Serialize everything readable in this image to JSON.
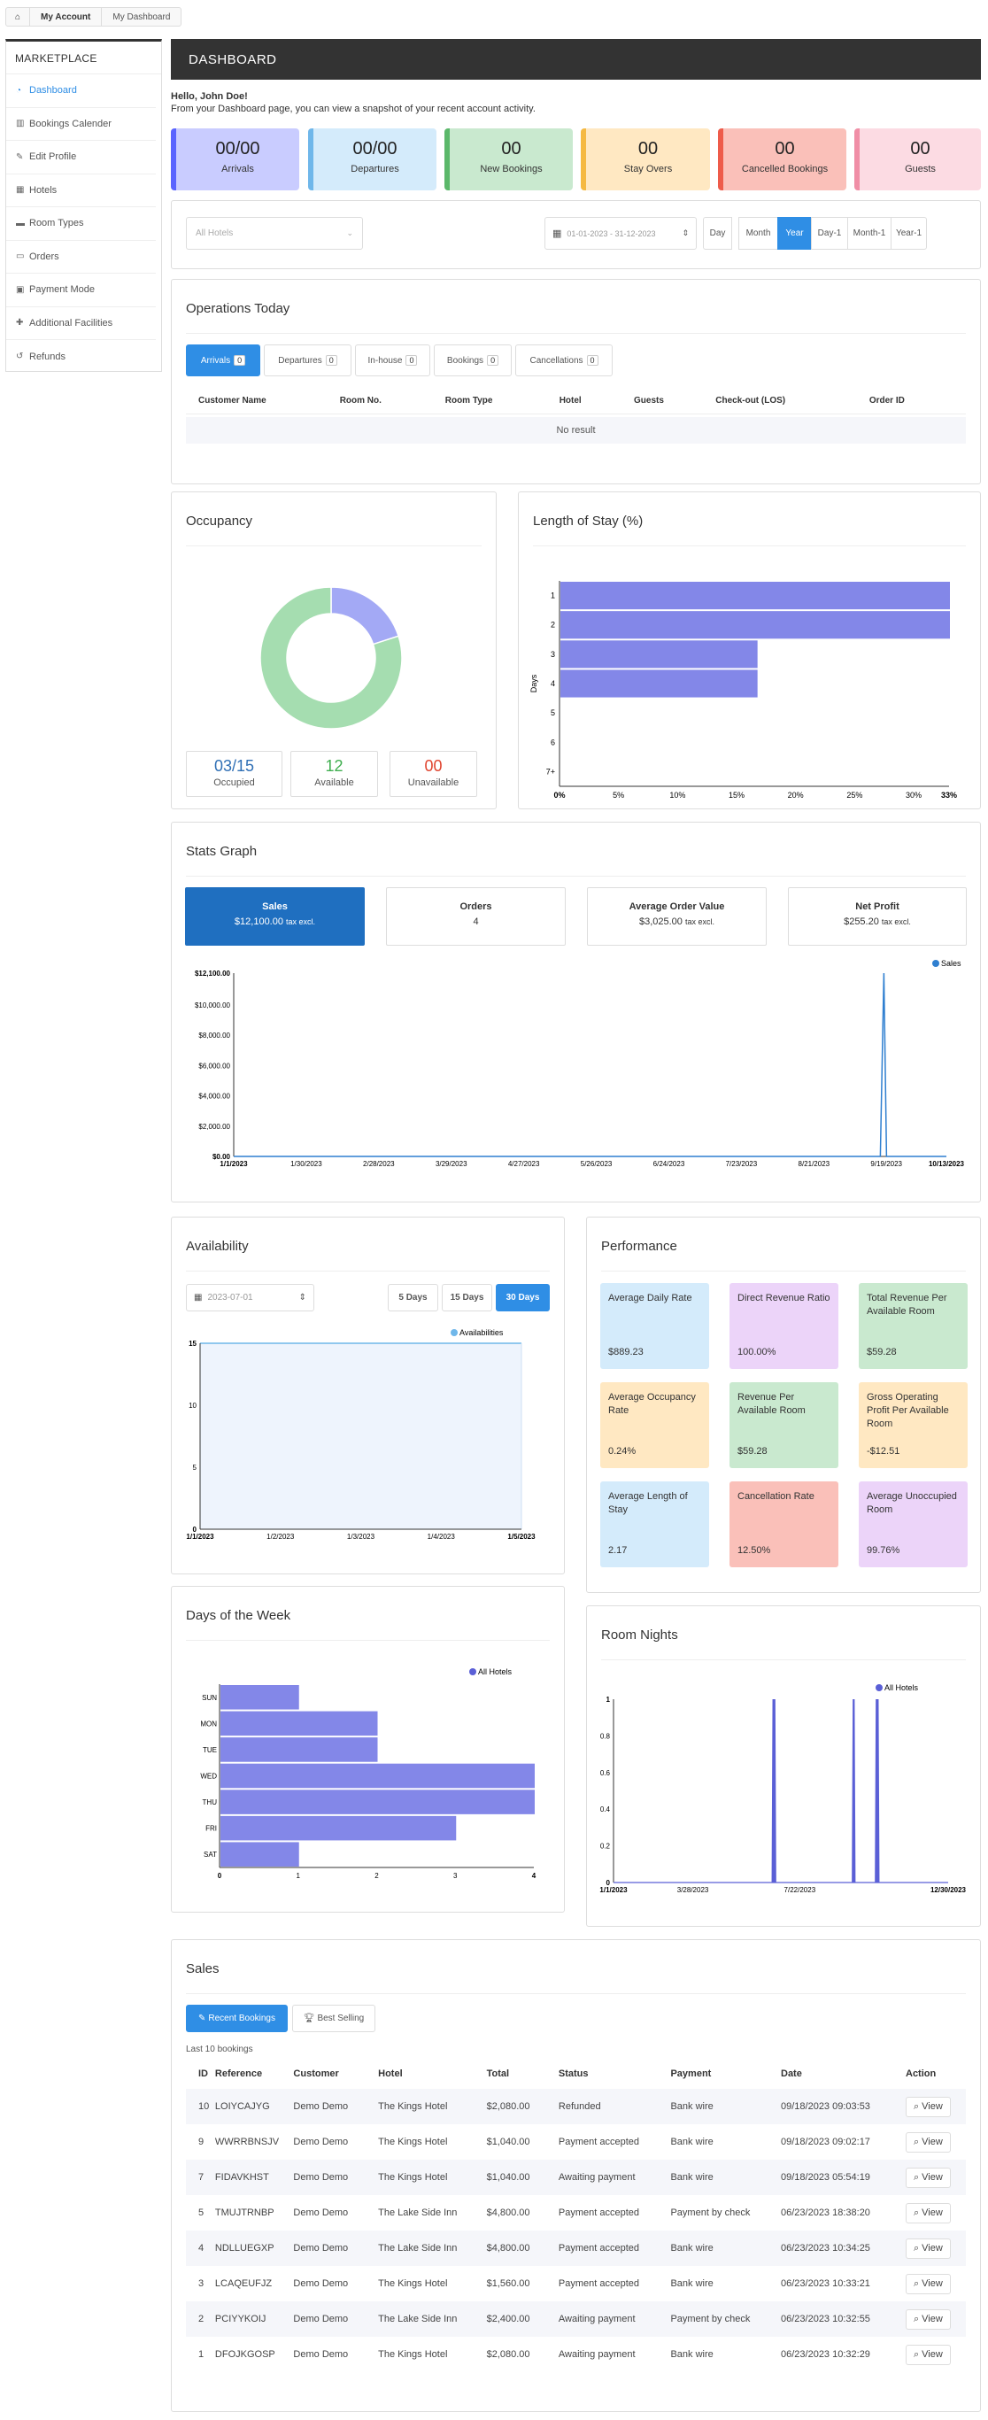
{
  "breadcrumb": {
    "home": "⌂",
    "items": [
      "My Account",
      "My Dashboard"
    ]
  },
  "sidebar": {
    "title": "MARKETPLACE",
    "items": [
      {
        "icon": "◔",
        "label": "Dashboard"
      },
      {
        "icon": "▥",
        "label": "Bookings Calender"
      },
      {
        "icon": "✎",
        "label": "Edit Profile"
      },
      {
        "icon": "▦",
        "label": "Hotels"
      },
      {
        "icon": "▬",
        "label": "Room Types"
      },
      {
        "icon": "▭",
        "label": "Orders"
      },
      {
        "icon": "▣",
        "label": "Payment Mode"
      },
      {
        "icon": "✚",
        "label": "Additional Facilities"
      },
      {
        "icon": "↺",
        "label": "Refunds"
      }
    ]
  },
  "header": {
    "title": "DASHBOARD"
  },
  "greeting": {
    "hello": "Hello, John Doe!",
    "text": "From your Dashboard page, you can view a snapshot of your recent account activity."
  },
  "stats": [
    {
      "value": "00/00",
      "label": "Arrivals",
      "bg": "#c9ccff",
      "bar": "#5a64ff"
    },
    {
      "value": "00/00",
      "label": "Departures",
      "bg": "#d4ebfb",
      "bar": "#6fb7ea"
    },
    {
      "value": "00",
      "label": "New Bookings",
      "bg": "#c9e9cf",
      "bar": "#5bb86a"
    },
    {
      "value": "00",
      "label": "Stay Overs",
      "bg": "#ffe8c2",
      "bar": "#f5b942"
    },
    {
      "value": "00",
      "label": "Cancelled Bookings",
      "bg": "#fac0b9",
      "bar": "#ee5b4a"
    },
    {
      "value": "00",
      "label": "Guests",
      "bg": "#fcdbe3",
      "bar": "#f08ea6"
    }
  ],
  "filters": {
    "hotel_placeholder": "All Hotels",
    "date_range": "01-01-2023 - 31-12-2023",
    "periods": [
      "Day",
      "Month",
      "Year",
      "Day-1",
      "Month-1",
      "Year-1"
    ],
    "active": "Year"
  },
  "operations": {
    "title": "Operations Today",
    "tabs": [
      {
        "label": "Arrivals",
        "count": "0"
      },
      {
        "label": "Departures",
        "count": "0"
      },
      {
        "label": "In-house",
        "count": "0"
      },
      {
        "label": "Bookings",
        "count": "0"
      },
      {
        "label": "Cancellations",
        "count": "0"
      }
    ],
    "columns": [
      "Customer Name",
      "Room No.",
      "Room Type",
      "Hotel",
      "Guests",
      "Check-out (LOS)",
      "Order ID"
    ],
    "empty": "No result"
  },
  "occupancy": {
    "title": "Occupancy",
    "occupied": "03/15",
    "occupied_label": "Occupied",
    "available": "12",
    "available_label": "Available",
    "unavailable": "00",
    "unavailable_label": "Unavailable"
  },
  "length_of_stay": {
    "title": "Length of Stay (%)"
  },
  "stats_graph": {
    "title": "Stats Graph",
    "boxes": [
      {
        "title": "Sales",
        "value": "$12,100.00",
        "note": "tax excl."
      },
      {
        "title": "Orders",
        "value": "4",
        "note": ""
      },
      {
        "title": "Average Order Value",
        "value": "$3,025.00",
        "note": "tax excl."
      },
      {
        "title": "Net Profit",
        "value": "$255.20",
        "note": "tax excl."
      }
    ]
  },
  "availability": {
    "title": "Availability",
    "date": "2023-07-01",
    "ranges": [
      "5 Days",
      "15 Days",
      "30 Days"
    ],
    "active": "30 Days"
  },
  "performance": {
    "title": "Performance",
    "items": [
      {
        "label": "Average Daily Rate",
        "value": "$889.23",
        "bg": "#d4ebfb"
      },
      {
        "label": "Direct Revenue Ratio",
        "value": "100.00%",
        "bg": "#ecd4f9"
      },
      {
        "label": "Total Revenue Per Available Room",
        "value": "$59.28",
        "bg": "#c9e9cf"
      },
      {
        "label": "Average Occupancy Rate",
        "value": "0.24%",
        "bg": "#ffe8c2"
      },
      {
        "label": "Revenue Per Available Room",
        "value": "$59.28",
        "bg": "#c9e9cf"
      },
      {
        "label": "Gross Operating Profit Per Available Room",
        "value": "-$12.51",
        "bg": "#ffe8c2"
      },
      {
        "label": "Average Length of Stay",
        "value": "2.17",
        "bg": "#d4ebfb"
      },
      {
        "label": "Cancellation Rate",
        "value": "12.50%",
        "bg": "#fac0b9"
      },
      {
        "label": "Average Unoccupied Room",
        "value": "99.76%",
        "bg": "#ecd4f9"
      }
    ]
  },
  "days_of_week": {
    "title": "Days of the Week"
  },
  "room_nights": {
    "title": "Room Nights"
  },
  "sales": {
    "title": "Sales",
    "tabs": [
      "Recent Bookings",
      "Best Selling"
    ],
    "caption": "Last 10 bookings",
    "columns": [
      "ID",
      "Reference",
      "Customer",
      "Hotel",
      "Total",
      "Status",
      "Payment",
      "Date",
      "Action"
    ],
    "view_label": "View",
    "rows": [
      [
        "10",
        "LOIYCAJYG",
        "Demo Demo",
        "The Kings Hotel",
        "$2,080.00",
        "Refunded",
        "Bank wire",
        "09/18/2023 09:03:53"
      ],
      [
        "9",
        "WWRRBNSJV",
        "Demo Demo",
        "The Kings Hotel",
        "$1,040.00",
        "Payment accepted",
        "Bank wire",
        "09/18/2023 09:02:17"
      ],
      [
        "7",
        "FIDAVKHST",
        "Demo Demo",
        "The Kings Hotel",
        "$1,040.00",
        "Awaiting payment",
        "Bank wire",
        "09/18/2023 05:54:19"
      ],
      [
        "5",
        "TMUJTRNBP",
        "Demo Demo",
        "The Lake Side Inn",
        "$4,800.00",
        "Payment accepted",
        "Payment by check",
        "06/23/2023 18:38:20"
      ],
      [
        "4",
        "NDLLUEGXP",
        "Demo Demo",
        "The Lake Side Inn",
        "$4,800.00",
        "Payment accepted",
        "Bank wire",
        "06/23/2023 10:34:25"
      ],
      [
        "3",
        "LCAQEUFJZ",
        "Demo Demo",
        "The Kings Hotel",
        "$1,560.00",
        "Payment accepted",
        "Bank wire",
        "06/23/2023 10:33:21"
      ],
      [
        "2",
        "PCIYYKOIJ",
        "Demo Demo",
        "The Lake Side Inn",
        "$2,400.00",
        "Awaiting payment",
        "Payment by check",
        "06/23/2023 10:32:55"
      ],
      [
        "1",
        "DFOJKGOSP",
        "Demo Demo",
        "The Kings Hotel",
        "$2,080.00",
        "Awaiting payment",
        "Bank wire",
        "06/23/2023 10:32:29"
      ]
    ]
  },
  "chart_data": [
    {
      "type": "pie",
      "title": "Occupancy",
      "labels": [
        "Occupied",
        "Available"
      ],
      "values": [
        3,
        12
      ],
      "colors": [
        "#a3a9f5",
        "#a5ddb0"
      ]
    },
    {
      "type": "bar",
      "orientation": "horizontal",
      "title": "Length of Stay (%)",
      "ylabel": "Days",
      "categories": [
        "1",
        "2",
        "3",
        "4",
        "5",
        "6",
        "7+"
      ],
      "values": [
        33,
        33,
        16.7,
        16.7,
        0,
        0,
        0
      ],
      "xticks": [
        "0%",
        "5%",
        "10%",
        "15%",
        "20%",
        "25%",
        "30%",
        "33%"
      ],
      "xlim": [
        0,
        33
      ],
      "color": "#8387e8"
    },
    {
      "type": "line",
      "title": "Sales",
      "series": [
        {
          "name": "Sales"
        }
      ],
      "x": [
        "1/1/2023",
        "1/30/2023",
        "2/28/2023",
        "3/29/2023",
        "4/27/2023",
        "5/26/2023",
        "6/24/2023",
        "7/23/2023",
        "8/21/2023",
        "9/19/2023",
        "10/13/2023"
      ],
      "yticks": [
        "$0.00",
        "$2,000.00",
        "$4,000.00",
        "$6,000.00",
        "$8,000.00",
        "$10,000.00",
        "$12,100.00"
      ],
      "ylim": [
        0,
        12100
      ],
      "spike": {
        "date": "9/18/2023",
        "value": 12100
      },
      "color": "#2f7fd0"
    },
    {
      "type": "area",
      "title": "Availability",
      "series": [
        {
          "name": "Availabilities"
        }
      ],
      "x": [
        "1/1/2023",
        "1/2/2023",
        "1/3/2023",
        "1/4/2023",
        "1/5/2023"
      ],
      "values": [
        15,
        15,
        15,
        15,
        15
      ],
      "yticks": [
        "0",
        "5",
        "10",
        "15"
      ],
      "ylim": [
        0,
        15
      ],
      "color": "#6fb7ea"
    },
    {
      "type": "bar",
      "orientation": "horizontal",
      "title": "Days of the Week",
      "series": [
        {
          "name": "All Hotels"
        }
      ],
      "categories": [
        "SUN",
        "MON",
        "TUE",
        "WED",
        "THU",
        "FRI",
        "SAT"
      ],
      "values": [
        1,
        2,
        2,
        4,
        4,
        3,
        1
      ],
      "xticks": [
        "0",
        "1",
        "2",
        "3",
        "4"
      ],
      "xlim": [
        0,
        4
      ],
      "color": "#8387e8"
    },
    {
      "type": "line",
      "title": "Room Nights",
      "series": [
        {
          "name": "All Hotels"
        }
      ],
      "x": [
        "1/1/2023",
        "3/28/2023",
        "7/22/2023",
        "12/30/2023"
      ],
      "yticks": [
        "0",
        "0.2",
        "0.4",
        "0.6",
        "0.8",
        "1"
      ],
      "ylim": [
        0,
        1
      ],
      "spikes": [
        "6/23/2023",
        "6/24/2023",
        "6/25/2023",
        "9/18/2023",
        "9/19/2023",
        "10/13/2023",
        "10/14/2023",
        "10/15/2023"
      ],
      "color": "#5a5fd6"
    }
  ]
}
